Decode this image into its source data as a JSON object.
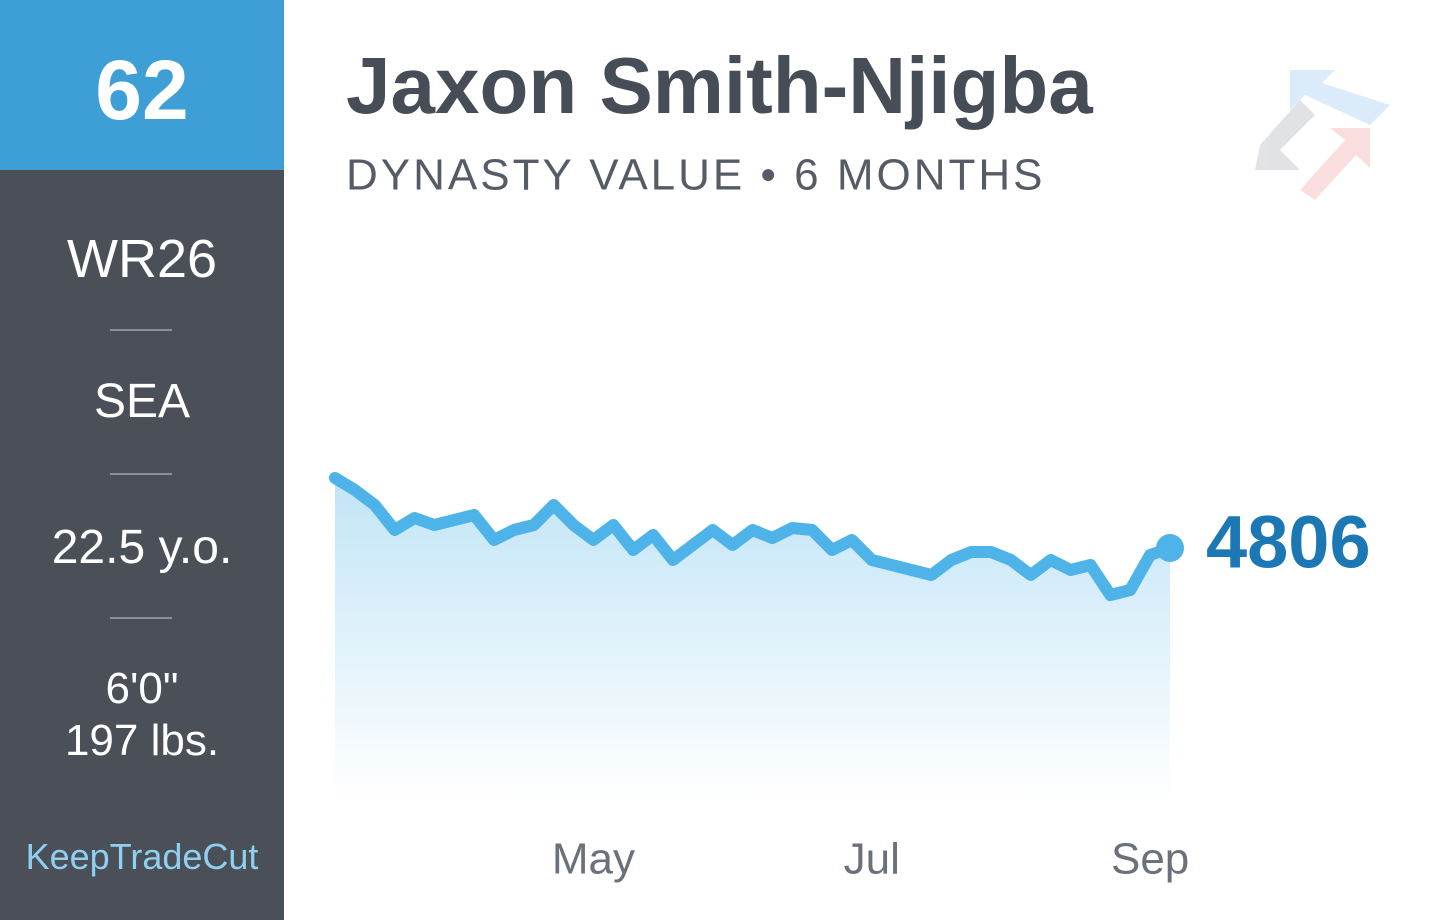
{
  "sidebar": {
    "rank": "62",
    "position": "WR26",
    "team": "SEA",
    "age": "22.5 y.o.",
    "height": "6'0\"",
    "weight": "197 lbs.",
    "brand": "KeepTradeCut"
  },
  "chart_data": {
    "type": "line",
    "title": "Jaxon Smith-Njigba",
    "subtitle": "DYNASTY VALUE • 6 MONTHS",
    "color": "#4db3e8",
    "categories": [
      null,
      null,
      null,
      null,
      null,
      null,
      null,
      null,
      null,
      null,
      null,
      null,
      null,
      "May",
      null,
      null,
      null,
      null,
      null,
      null,
      null,
      null,
      null,
      null,
      null,
      null,
      null,
      "Jul",
      null,
      null,
      null,
      null,
      null,
      null,
      null,
      null,
      null,
      null,
      null,
      null,
      null,
      "Sep",
      null
    ],
    "values": [
      5156,
      5096,
      5021,
      4896,
      4956,
      4921,
      4946,
      4971,
      4846,
      4896,
      4921,
      5021,
      4921,
      4846,
      4921,
      4796,
      4871,
      4746,
      4821,
      4896,
      4821,
      4896,
      4856,
      4906,
      4896,
      4796,
      4846,
      4746,
      4721,
      4696,
      4671,
      4746,
      4786,
      4786,
      4746,
      4671,
      4746,
      4696,
      4721,
      4571,
      4596,
      4771,
      4806
    ]
  }
}
